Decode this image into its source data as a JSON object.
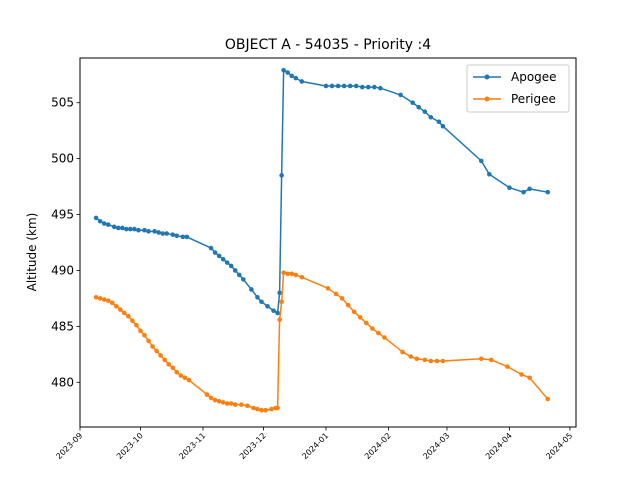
{
  "chart_data": {
    "type": "line",
    "title": "OBJECT A - 54035 - Priority :4",
    "xlabel": "",
    "ylabel": "Altitude (km)",
    "xlim": [
      "2023-09-01",
      "2024-05-04"
    ],
    "ylim": [
      476.0,
      509.0
    ],
    "x_ticks": [
      "2023-09",
      "2023-10",
      "2023-11",
      "2023-12",
      "2024-01",
      "2024-02",
      "2024-03",
      "2024-04",
      "2024-05"
    ],
    "y_ticks": [
      480,
      485,
      490,
      495,
      500,
      505
    ],
    "legend_position": "top-right",
    "grid": false,
    "series": [
      {
        "name": "Apogee",
        "color": "#1f77b4",
        "points": [
          [
            "2023-09-09",
            494.7
          ],
          [
            "2023-09-11",
            494.4
          ],
          [
            "2023-09-13",
            494.2
          ],
          [
            "2023-09-15",
            494.1
          ],
          [
            "2023-09-18",
            493.9
          ],
          [
            "2023-09-20",
            493.8
          ],
          [
            "2023-09-22",
            493.8
          ],
          [
            "2023-09-24",
            493.7
          ],
          [
            "2023-09-26",
            493.7
          ],
          [
            "2023-09-28",
            493.7
          ],
          [
            "2023-09-30",
            493.6
          ],
          [
            "2023-10-03",
            493.6
          ],
          [
            "2023-10-05",
            493.5
          ],
          [
            "2023-10-08",
            493.5
          ],
          [
            "2023-10-10",
            493.4
          ],
          [
            "2023-10-12",
            493.3
          ],
          [
            "2023-10-14",
            493.3
          ],
          [
            "2023-10-17",
            493.2
          ],
          [
            "2023-10-19",
            493.1
          ],
          [
            "2023-10-22",
            493.0
          ],
          [
            "2023-10-24",
            493.0
          ],
          [
            "2023-11-05",
            492.0
          ],
          [
            "2023-11-07",
            491.6
          ],
          [
            "2023-11-09",
            491.3
          ],
          [
            "2023-11-11",
            491.0
          ],
          [
            "2023-11-13",
            490.7
          ],
          [
            "2023-11-15",
            490.4
          ],
          [
            "2023-11-17",
            490.0
          ],
          [
            "2023-11-19",
            489.6
          ],
          [
            "2023-11-21",
            489.2
          ],
          [
            "2023-11-25",
            488.3
          ],
          [
            "2023-11-28",
            487.6
          ],
          [
            "2023-11-30",
            487.2
          ],
          [
            "2023-12-03",
            486.8
          ],
          [
            "2023-12-06",
            486.4
          ],
          [
            "2023-12-08",
            486.2
          ],
          [
            "2023-12-09",
            488.0
          ],
          [
            "2023-12-10",
            498.5
          ],
          [
            "2023-12-11",
            507.9
          ],
          [
            "2023-12-13",
            507.7
          ],
          [
            "2023-12-15",
            507.4
          ],
          [
            "2023-12-17",
            507.2
          ],
          [
            "2023-12-20",
            506.9
          ],
          [
            "2024-01-01",
            506.5
          ],
          [
            "2024-01-04",
            506.5
          ],
          [
            "2024-01-07",
            506.5
          ],
          [
            "2024-01-10",
            506.5
          ],
          [
            "2024-01-13",
            506.5
          ],
          [
            "2024-01-16",
            506.5
          ],
          [
            "2024-01-19",
            506.4
          ],
          [
            "2024-01-22",
            506.4
          ],
          [
            "2024-01-25",
            506.4
          ],
          [
            "2024-01-28",
            506.3
          ],
          [
            "2024-02-07",
            505.7
          ],
          [
            "2024-02-13",
            505.0
          ],
          [
            "2024-02-16",
            504.6
          ],
          [
            "2024-02-19",
            504.2
          ],
          [
            "2024-02-22",
            503.7
          ],
          [
            "2024-02-26",
            503.3
          ],
          [
            "2024-02-28",
            502.9
          ],
          [
            "2024-03-18",
            499.8
          ],
          [
            "2024-03-22",
            498.6
          ],
          [
            "2024-04-01",
            497.4
          ],
          [
            "2024-04-08",
            497.0
          ],
          [
            "2024-04-11",
            497.3
          ],
          [
            "2024-04-20",
            497.0
          ]
        ]
      },
      {
        "name": "Perigee",
        "color": "#ff7f0e",
        "points": [
          [
            "2023-09-09",
            487.6
          ],
          [
            "2023-09-11",
            487.5
          ],
          [
            "2023-09-13",
            487.4
          ],
          [
            "2023-09-15",
            487.3
          ],
          [
            "2023-09-17",
            487.1
          ],
          [
            "2023-09-19",
            486.8
          ],
          [
            "2023-09-21",
            486.5
          ],
          [
            "2023-09-23",
            486.2
          ],
          [
            "2023-09-25",
            485.9
          ],
          [
            "2023-09-27",
            485.5
          ],
          [
            "2023-09-29",
            485.1
          ],
          [
            "2023-10-01",
            484.6
          ],
          [
            "2023-10-03",
            484.2
          ],
          [
            "2023-10-05",
            483.7
          ],
          [
            "2023-10-07",
            483.2
          ],
          [
            "2023-10-09",
            482.8
          ],
          [
            "2023-10-11",
            482.4
          ],
          [
            "2023-10-13",
            482.0
          ],
          [
            "2023-10-15",
            481.6
          ],
          [
            "2023-10-17",
            481.3
          ],
          [
            "2023-10-19",
            480.9
          ],
          [
            "2023-10-21",
            480.6
          ],
          [
            "2023-10-23",
            480.4
          ],
          [
            "2023-10-25",
            480.2
          ],
          [
            "2023-11-03",
            478.9
          ],
          [
            "2023-11-05",
            478.6
          ],
          [
            "2023-11-07",
            478.4
          ],
          [
            "2023-11-09",
            478.3
          ],
          [
            "2023-11-11",
            478.2
          ],
          [
            "2023-11-13",
            478.1
          ],
          [
            "2023-11-15",
            478.1
          ],
          [
            "2023-11-17",
            478.0
          ],
          [
            "2023-11-20",
            478.0
          ],
          [
            "2023-11-23",
            477.9
          ],
          [
            "2023-11-26",
            477.7
          ],
          [
            "2023-11-28",
            477.6
          ],
          [
            "2023-11-30",
            477.5
          ],
          [
            "2023-12-02",
            477.5
          ],
          [
            "2023-12-05",
            477.6
          ],
          [
            "2023-12-07",
            477.7
          ],
          [
            "2023-12-08",
            477.7
          ],
          [
            "2023-12-09",
            485.6
          ],
          [
            "2023-12-10",
            487.2
          ],
          [
            "2023-12-11",
            489.8
          ],
          [
            "2023-12-13",
            489.7
          ],
          [
            "2023-12-15",
            489.7
          ],
          [
            "2023-12-17",
            489.6
          ],
          [
            "2023-12-20",
            489.4
          ],
          [
            "2024-01-02",
            488.4
          ],
          [
            "2024-01-06",
            487.9
          ],
          [
            "2024-01-09",
            487.5
          ],
          [
            "2024-01-12",
            486.9
          ],
          [
            "2024-01-15",
            486.3
          ],
          [
            "2024-01-18",
            485.8
          ],
          [
            "2024-01-21",
            485.3
          ],
          [
            "2024-01-24",
            484.8
          ],
          [
            "2024-01-27",
            484.4
          ],
          [
            "2024-01-30",
            484.0
          ],
          [
            "2024-02-08",
            482.7
          ],
          [
            "2024-02-12",
            482.3
          ],
          [
            "2024-02-15",
            482.1
          ],
          [
            "2024-02-19",
            482.0
          ],
          [
            "2024-02-22",
            481.9
          ],
          [
            "2024-02-25",
            481.9
          ],
          [
            "2024-02-28",
            481.9
          ],
          [
            "2024-03-18",
            482.1
          ],
          [
            "2024-03-23",
            482.0
          ],
          [
            "2024-03-31",
            481.4
          ],
          [
            "2024-04-07",
            480.7
          ],
          [
            "2024-04-11",
            480.4
          ],
          [
            "2024-04-20",
            478.5
          ]
        ]
      }
    ]
  }
}
